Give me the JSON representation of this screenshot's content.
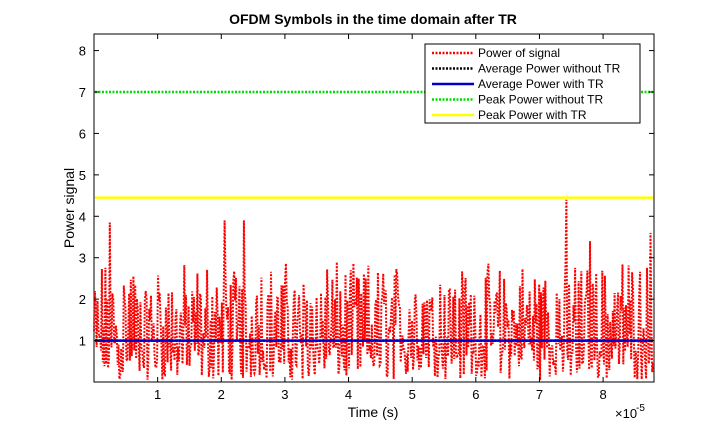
{
  "chart_data": {
    "type": "line",
    "title": "OFDM Symbols in the time domain after TR",
    "xlabel": "Time (s)",
    "ylabel": "Power signal",
    "x_exponent_label": "×10",
    "x_exponent": "-5",
    "xlim": [
      0,
      8.8
    ],
    "ylim": [
      0,
      8.4
    ],
    "xticks": [
      "1",
      "2",
      "3",
      "4",
      "5",
      "6",
      "7",
      "8"
    ],
    "yticks": [
      "1",
      "2",
      "3",
      "4",
      "5",
      "6",
      "7",
      "8"
    ],
    "grid": false,
    "legend_position": "top-right",
    "series": [
      {
        "name": "Power of signal",
        "color": "#ff0000",
        "style": "dotted",
        "samples": 640,
        "amplitude_min": 0.05,
        "amplitude_max": 4.4,
        "peaks": [
          [
            0.25,
            3.85
          ],
          [
            2.05,
            3.9
          ],
          [
            2.35,
            3.9
          ],
          [
            7.42,
            4.4
          ],
          [
            7.8,
            3.4
          ],
          [
            8.75,
            3.6
          ]
        ]
      },
      {
        "name": "Average Power without TR",
        "color": "#000000",
        "style": "dotted",
        "y": 1.0
      },
      {
        "name": "Average Power with TR",
        "color": "#0000cc",
        "style": "solid",
        "y": 1.0
      },
      {
        "name": "Peak Power without TR",
        "color": "#00dd00",
        "style": "dotted",
        "y": 7.0
      },
      {
        "name": "Peak Power with TR",
        "color": "#ffff00",
        "style": "solid",
        "y": 4.45
      }
    ]
  }
}
